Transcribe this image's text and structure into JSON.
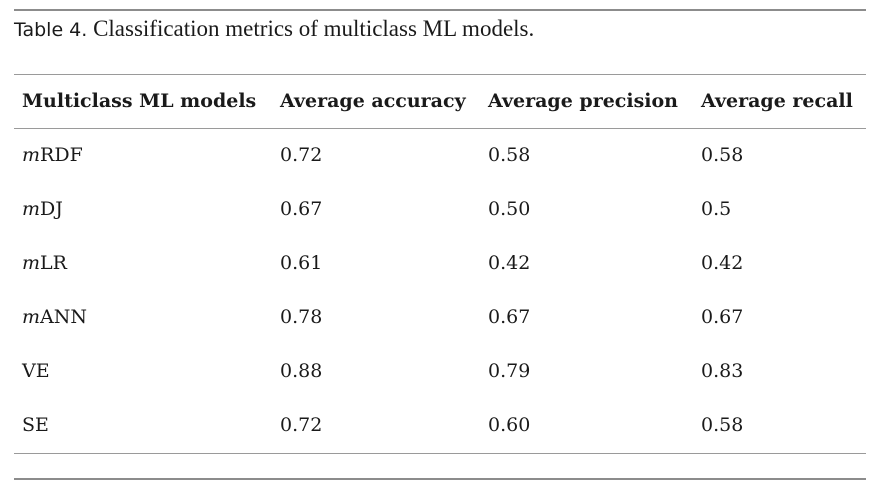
{
  "caption": {
    "label": "Table 4.",
    "text": "Classification metrics of multiclass ML models."
  },
  "table": {
    "headers": [
      "Multiclass ML models",
      "Average accuracy",
      "Average precision",
      "Average recall"
    ],
    "rows": [
      {
        "prefix": "m",
        "model": "RDF",
        "accuracy": "0.72",
        "precision": "0.58",
        "recall": "0.58"
      },
      {
        "prefix": "m",
        "model": "DJ",
        "accuracy": "0.67",
        "precision": "0.50",
        "recall": "0.5"
      },
      {
        "prefix": "m",
        "model": "LR",
        "accuracy": "0.61",
        "precision": "0.42",
        "recall": "0.42"
      },
      {
        "prefix": "m",
        "model": "ANN",
        "accuracy": "0.78",
        "precision": "0.67",
        "recall": "0.67"
      },
      {
        "prefix": "",
        "model": "VE",
        "accuracy": "0.88",
        "precision": "0.79",
        "recall": "0.83"
      },
      {
        "prefix": "",
        "model": "SE",
        "accuracy": "0.72",
        "precision": "0.60",
        "recall": "0.58"
      }
    ]
  }
}
